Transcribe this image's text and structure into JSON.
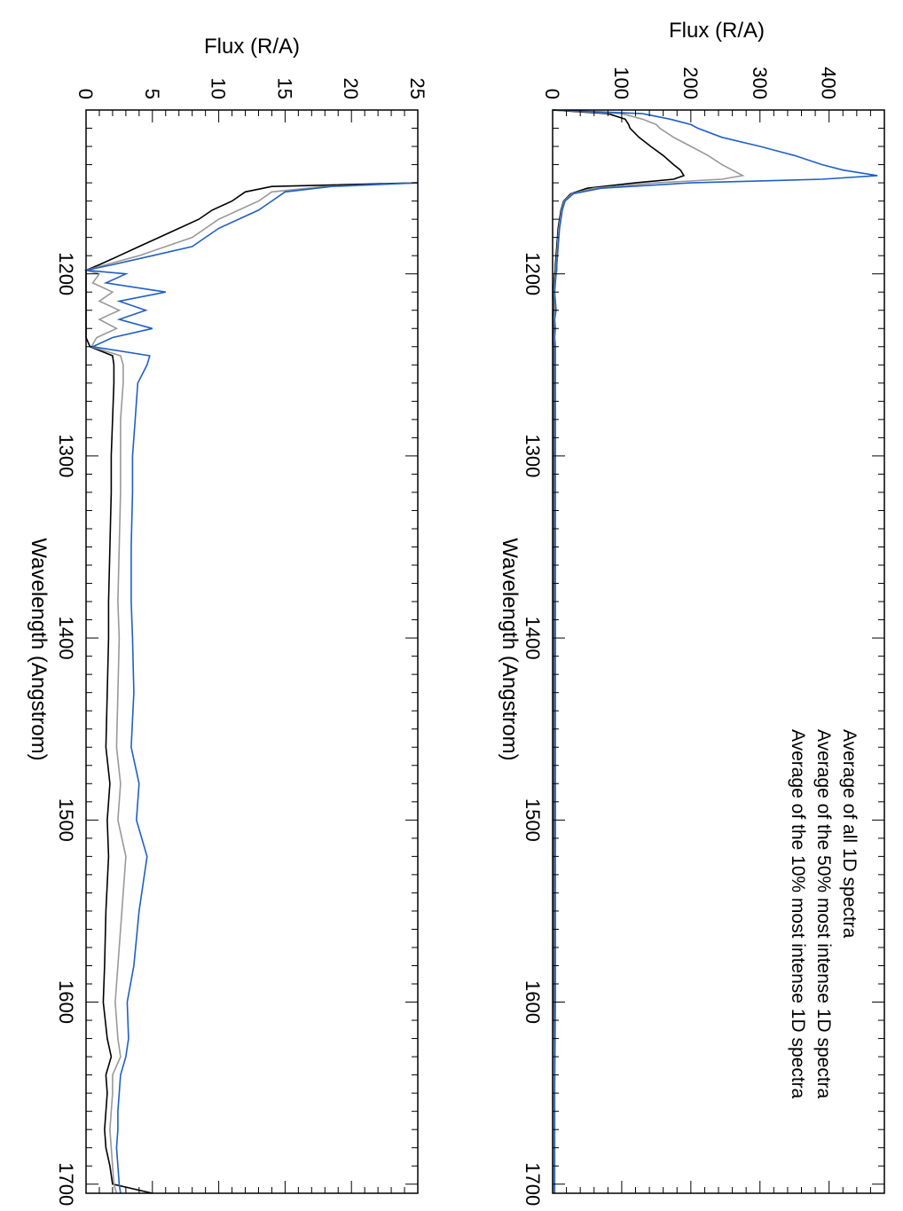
{
  "colors": {
    "all": "#000000",
    "top50": "#999999",
    "top10": "#1f5fc8"
  },
  "legend": {
    "entries": [
      {
        "label": "Average of all 1D spectra",
        "color": "#000000"
      },
      {
        "label": "Average of the 50% most intense 1D spectra",
        "color": "#999999"
      },
      {
        "label": "Average of the 10% most intense 1D spectra",
        "color": "#1f5fc8"
      }
    ]
  },
  "chart_data": [
    {
      "type": "line",
      "rotated": "90deg-clockwise",
      "xlabel": "Wavelength (Angstrom)",
      "ylabel": "Flux (R/A)",
      "xlim": [
        1110,
        1705
      ],
      "ylim": [
        0,
        480
      ],
      "xticks": [
        1200,
        1300,
        1400,
        1500,
        1600,
        1700
      ],
      "yticks": [
        0,
        100,
        200,
        300,
        400
      ],
      "legend_placement": "top-right",
      "series": [
        {
          "name": "Average of all 1D spectra",
          "color": "#000000",
          "x": [
            1110,
            1112,
            1115,
            1118,
            1120,
            1125,
            1130,
            1135,
            1140,
            1143,
            1146,
            1148,
            1150,
            1153,
            1156,
            1160,
            1165,
            1170,
            1175,
            1180,
            1185,
            1190,
            1195,
            1198,
            1200,
            1205,
            1210,
            1215,
            1220,
            1225,
            1230,
            1235,
            1240,
            1250,
            1300,
            1400,
            1500,
            1600,
            1650,
            1700,
            1705
          ],
          "y": [
            0,
            80,
            105,
            110,
            112,
            125,
            142,
            160,
            175,
            185,
            190,
            175,
            120,
            50,
            26,
            16,
            12,
            10,
            8,
            7,
            6,
            5,
            4,
            4,
            3,
            2,
            1,
            2,
            2,
            1,
            2,
            1,
            2,
            2,
            2,
            2,
            2,
            2,
            2,
            2,
            2
          ]
        },
        {
          "name": "Average of the 50% most intense 1D spectra",
          "color": "#999999",
          "x": [
            1110,
            1112,
            1115,
            1118,
            1120,
            1125,
            1130,
            1135,
            1140,
            1143,
            1146,
            1148,
            1150,
            1153,
            1156,
            1160,
            1165,
            1170,
            1175,
            1180,
            1185,
            1190,
            1195,
            1198,
            1200,
            1205,
            1210,
            1215,
            1220,
            1225,
            1230,
            1235,
            1240,
            1250,
            1300,
            1400,
            1500,
            1600,
            1650,
            1700,
            1705
          ],
          "y": [
            0,
            100,
            130,
            150,
            155,
            175,
            200,
            225,
            245,
            260,
            275,
            245,
            150,
            60,
            28,
            17,
            13,
            11,
            9,
            8,
            7,
            6,
            5,
            5,
            4,
            3,
            2,
            3,
            3,
            2,
            3,
            2,
            3,
            3,
            3,
            3,
            3,
            3,
            2,
            2,
            2
          ]
        },
        {
          "name": "Average of the 10% most intense 1D spectra",
          "color": "#1f5fc8",
          "x": [
            1110,
            1112,
            1115,
            1118,
            1120,
            1125,
            1130,
            1135,
            1140,
            1143,
            1146,
            1148,
            1150,
            1153,
            1156,
            1160,
            1165,
            1170,
            1175,
            1180,
            1185,
            1190,
            1195,
            1198,
            1200,
            1205,
            1210,
            1215,
            1220,
            1225,
            1230,
            1235,
            1240,
            1250,
            1300,
            1400,
            1500,
            1600,
            1650,
            1700,
            1705
          ],
          "y": [
            0,
            130,
            170,
            200,
            210,
            245,
            300,
            350,
            390,
            420,
            470,
            390,
            200,
            70,
            30,
            18,
            14,
            12,
            10,
            9,
            8,
            7,
            6,
            6,
            5,
            4,
            3,
            4,
            5,
            3,
            4,
            3,
            4,
            4,
            4,
            4,
            4,
            4,
            3,
            3,
            3
          ]
        }
      ]
    },
    {
      "type": "line",
      "rotated": "90deg-clockwise",
      "xlabel": "Wavelength (Angstrom)",
      "ylabel": "Flux (R/A)",
      "xlim": [
        1110,
        1705
      ],
      "ylim": [
        0,
        25
      ],
      "xticks": [
        1200,
        1300,
        1400,
        1500,
        1600,
        1700
      ],
      "yticks": [
        0,
        5,
        10,
        15,
        20,
        25
      ],
      "series": [
        {
          "name": "Average of all 1D spectra",
          "color": "#000000",
          "x": [
            1150,
            1152,
            1155,
            1160,
            1165,
            1170,
            1175,
            1180,
            1185,
            1190,
            1195,
            1198,
            1200,
            1205,
            1210,
            1215,
            1220,
            1225,
            1230,
            1235,
            1240,
            1245,
            1250,
            1260,
            1280,
            1300,
            1320,
            1350,
            1380,
            1400,
            1430,
            1460,
            1480,
            1500,
            1520,
            1550,
            1580,
            1600,
            1620,
            1630,
            1640,
            1650,
            1660,
            1670,
            1680,
            1690,
            1700,
            1705
          ],
          "y": [
            25,
            14,
            12,
            11,
            9.5,
            8.5,
            7,
            5.5,
            4,
            2.5,
            1,
            0,
            0,
            0,
            0,
            0,
            0,
            0,
            0,
            0,
            0.3,
            2,
            2.1,
            2.1,
            2.0,
            1.9,
            1.9,
            1.8,
            1.7,
            1.7,
            1.6,
            1.5,
            1.8,
            1.6,
            1.7,
            1.5,
            1.4,
            1.3,
            1.6,
            1.9,
            1.5,
            1.6,
            1.5,
            1.4,
            1.5,
            1.8,
            2.0,
            5
          ]
        },
        {
          "name": "Average of the 50% most intense 1D spectra",
          "color": "#999999",
          "x": [
            1150,
            1152,
            1155,
            1160,
            1165,
            1170,
            1175,
            1180,
            1185,
            1190,
            1195,
            1198,
            1200,
            1205,
            1210,
            1215,
            1220,
            1225,
            1230,
            1235,
            1240,
            1245,
            1250,
            1260,
            1280,
            1300,
            1320,
            1350,
            1380,
            1400,
            1430,
            1460,
            1480,
            1500,
            1520,
            1550,
            1580,
            1600,
            1620,
            1630,
            1640,
            1650,
            1660,
            1670,
            1680,
            1690,
            1700,
            1705
          ],
          "y": [
            25,
            18,
            14,
            13,
            11.5,
            10,
            9,
            8,
            6,
            4,
            1.5,
            0,
            1,
            0.5,
            2,
            1,
            2.5,
            1,
            2.3,
            0.8,
            0.4,
            2.6,
            2.8,
            2.8,
            2.6,
            2.6,
            2.6,
            2.5,
            2.4,
            2.5,
            2.4,
            2.3,
            2.6,
            2.4,
            3.0,
            2.7,
            2.4,
            2.2,
            2.4,
            2.6,
            2.0,
            2.0,
            1.9,
            1.8,
            1.9,
            2.0,
            2.1,
            2.3
          ]
        },
        {
          "name": "Average of the 10% most intense 1D spectra",
          "color": "#1f5fc8",
          "x": [
            1150,
            1152,
            1155,
            1160,
            1165,
            1170,
            1175,
            1180,
            1185,
            1190,
            1195,
            1198,
            1200,
            1205,
            1210,
            1215,
            1220,
            1225,
            1230,
            1235,
            1240,
            1245,
            1250,
            1260,
            1280,
            1300,
            1320,
            1350,
            1380,
            1400,
            1430,
            1460,
            1480,
            1500,
            1520,
            1550,
            1580,
            1600,
            1620,
            1630,
            1640,
            1650,
            1660,
            1670,
            1680,
            1690,
            1700,
            1705
          ],
          "y": [
            25,
            18.5,
            15,
            14,
            13,
            11.5,
            10,
            9,
            8,
            5,
            2,
            0,
            3,
            1.5,
            6,
            2.5,
            4.5,
            2.5,
            5,
            2,
            0.5,
            4.8,
            4.6,
            3.9,
            3.7,
            3.5,
            3.5,
            3.4,
            3.4,
            3.5,
            3.6,
            3.4,
            4.0,
            3.8,
            4.6,
            4.0,
            3.6,
            3.1,
            3.2,
            3.0,
            2.6,
            2.5,
            2.4,
            2.4,
            2.3,
            2.4,
            2.5,
            2.6
          ]
        }
      ]
    }
  ]
}
